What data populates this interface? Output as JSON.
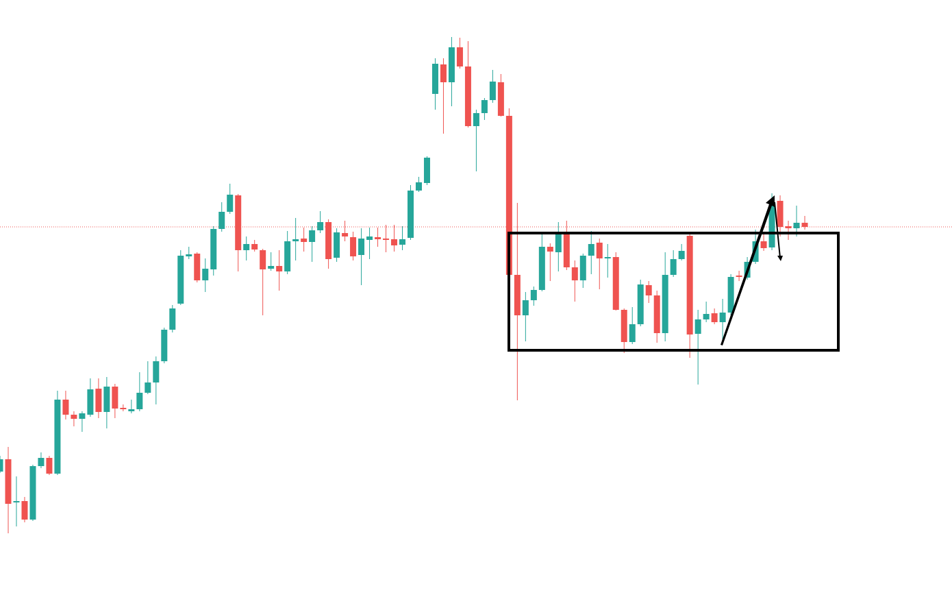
{
  "chart_data": {
    "type": "candlestick",
    "up_color": "#26a69a",
    "down_color": "#ef5350",
    "ylim": [
      0,
      887
    ],
    "open": [
      199,
      217,
      154,
      156,
      129,
      207,
      219,
      196,
      304,
      282,
      276,
      282,
      320,
      286,
      323,
      292,
      287,
      290,
      314,
      329,
      360,
      406,
      444,
      513,
      517,
      478,
      494,
      553,
      578,
      602,
      522,
      531,
      522,
      495,
      499,
      491,
      535,
      539,
      534,
      551,
      563,
      511,
      547,
      541,
      515,
      537,
      541,
      539,
      538,
      530,
      540,
      609,
      620,
      750,
      793,
      767,
      818,
      790,
      703,
      722,
      741,
      767,
      718,
      486,
      427,
      449,
      464,
      527,
      519,
      547,
      497,
      478,
      514,
      533,
      510,
      512,
      435,
      388,
      414,
      471,
      456,
      401,
      486,
      509,
      543,
      400,
      421,
      430,
      417,
      431,
      485,
      482,
      505,
      535,
      526,
      594,
      557,
      554,
      562
    ],
    "high": [
      222,
      235,
      192,
      162,
      209,
      227,
      222,
      317,
      317,
      287,
      287,
      335,
      335,
      337,
      327,
      297,
      304,
      344,
      360,
      367,
      409,
      442,
      522,
      527,
      519,
      510,
      557,
      592,
      619,
      604,
      542,
      537,
      524,
      519,
      522,
      550,
      569,
      555,
      557,
      579,
      567,
      554,
      565,
      549,
      554,
      555,
      555,
      559,
      559,
      557,
      617,
      629,
      659,
      802,
      802,
      833,
      832,
      827,
      727,
      744,
      785,
      779,
      729,
      591,
      461,
      469,
      546,
      532,
      563,
      565,
      507,
      517,
      550,
      539,
      531,
      519,
      437,
      439,
      479,
      477,
      463,
      519,
      522,
      531,
      545,
      435,
      447,
      437,
      451,
      487,
      492,
      512,
      552,
      547,
      605,
      602,
      565,
      587,
      572
    ],
    "low": [
      197,
      109,
      119,
      125,
      127,
      204,
      194,
      194,
      275,
      265,
      257,
      279,
      277,
      262,
      277,
      287,
      284,
      287,
      312,
      297,
      357,
      402,
      442,
      509,
      475,
      461,
      485,
      549,
      575,
      491,
      507,
      520,
      427,
      492,
      463,
      487,
      507,
      520,
      505,
      547,
      495,
      505,
      535,
      507,
      471,
      509,
      527,
      519,
      520,
      522,
      537,
      607,
      617,
      727,
      692,
      732,
      787,
      701,
      637,
      712,
      737,
      717,
      485,
      303,
      389,
      441,
      462,
      477,
      491,
      493,
      447,
      467,
      487,
      465,
      482,
      434,
      372,
      385,
      411,
      445,
      387,
      389,
      483,
      507,
      365,
      326,
      417,
      414,
      387,
      427,
      477,
      479,
      502,
      521,
      522,
      542,
      537,
      542,
      552
    ],
    "close": [
      217,
      152,
      156,
      129,
      207,
      219,
      196,
      304,
      282,
      276,
      284,
      319,
      286,
      323,
      291,
      290,
      290,
      314,
      329,
      360,
      406,
      437,
      514,
      516,
      478,
      495,
      553,
      578,
      603,
      522,
      531,
      523,
      494,
      499,
      491,
      535,
      538,
      534,
      551,
      563,
      509,
      548,
      542,
      513,
      539,
      542,
      538,
      537,
      529,
      538,
      609,
      621,
      657,
      794,
      767,
      818,
      790,
      703,
      722,
      741,
      768,
      718,
      486,
      427,
      449,
      464,
      527,
      520,
      547,
      497,
      478,
      514,
      531,
      510,
      512,
      435,
      388,
      414,
      472,
      456,
      401,
      486,
      509,
      521,
      399,
      421,
      429,
      417,
      431,
      483,
      483,
      505,
      535,
      525,
      587,
      556,
      554,
      562,
      556
    ]
  }
}
